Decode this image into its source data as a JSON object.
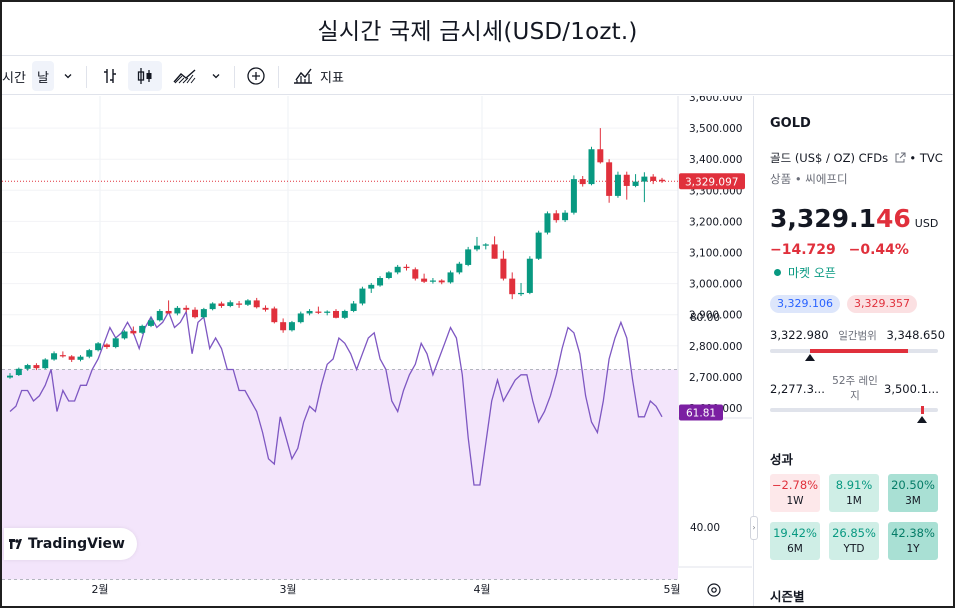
{
  "page": {
    "title": "실시간 국제 금시세(USD/1ozt.)"
  },
  "toolbar": {
    "interval_label_partial": "시간",
    "interval_value": "날",
    "indicators_label": "지표"
  },
  "symbol": {
    "name": "GOLD",
    "description": "골드 (US$ / OZ) CFDs",
    "exchange": "• TVC",
    "category": "상품 • 씨에프디",
    "price_main": "3,329.1",
    "price_tail": "46",
    "currency": "USD",
    "change_abs": "−14.729",
    "change_pct": "−0.44%",
    "market_status": "마켓 오픈",
    "bid": "3,329.106",
    "ask": "3,329.357"
  },
  "day_range": {
    "label": "일간범위",
    "low": "3,322.980",
    "high": "3,348.650",
    "low_value": 3322.98,
    "high_value": 3348.65,
    "current_value": 3329.146
  },
  "week52_range": {
    "label": "52주 레인지",
    "low": "2,277.3...",
    "high": "3,500.1...",
    "low_value": 2277.3,
    "high_value": 3500.1,
    "current_value": 3329.146
  },
  "performance": {
    "title": "성과",
    "items": [
      {
        "period": "1W",
        "value": "−2.78%"
      },
      {
        "period": "1M",
        "value": "8.91%"
      },
      {
        "period": "3M",
        "value": "20.50%"
      },
      {
        "period": "6M",
        "value": "19.42%"
      },
      {
        "period": "YTD",
        "value": "26.85%"
      },
      {
        "period": "1Y",
        "value": "42.38%"
      }
    ]
  },
  "seasonal": {
    "title": "시즌별"
  },
  "branding": {
    "logo_text": "TradingView"
  },
  "colors": {
    "up": "#089981",
    "down": "#e0303c",
    "rsi_line": "#7e57c2",
    "rsi_fill": "#f3e5fb",
    "rsi_label": "#7b1fa2"
  },
  "chart_data": [
    {
      "type": "candlestick",
      "title": "",
      "ylim": [
        2570,
        3600
      ],
      "y_ticks": [
        "2,600.000",
        "2,700.000",
        "2,800.000",
        "2,900.000",
        "3,000.000",
        "3,100.000",
        "3,200.000",
        "3,300.000",
        "3,400.000",
        "3,500.000",
        "3,600.000"
      ],
      "x_tick_labels": [
        "2월",
        "3월",
        "4월",
        "5월"
      ],
      "last_price_label": "3,329.097",
      "last_price": 3329.097,
      "reference_line": 2700,
      "candles": [
        [
          2698,
          2712,
          2694,
          2704
        ],
        [
          2706,
          2730,
          2703,
          2726
        ],
        [
          2726,
          2742,
          2720,
          2738
        ],
        [
          2738,
          2744,
          2722,
          2728
        ],
        [
          2728,
          2760,
          2725,
          2756
        ],
        [
          2756,
          2782,
          2752,
          2776
        ],
        [
          2770,
          2782,
          2762,
          2766
        ],
        [
          2766,
          2770,
          2748,
          2755
        ],
        [
          2755,
          2770,
          2750,
          2765
        ],
        [
          2765,
          2790,
          2760,
          2786
        ],
        [
          2786,
          2812,
          2782,
          2808
        ],
        [
          2804,
          2808,
          2790,
          2796
        ],
        [
          2796,
          2828,
          2792,
          2824
        ],
        [
          2824,
          2850,
          2820,
          2846
        ],
        [
          2848,
          2862,
          2836,
          2840
        ],
        [
          2842,
          2868,
          2838,
          2864
        ],
        [
          2864,
          2890,
          2860,
          2882
        ],
        [
          2882,
          2918,
          2878,
          2912
        ],
        [
          2912,
          2946,
          2906,
          2904
        ],
        [
          2904,
          2928,
          2898,
          2922
        ],
        [
          2922,
          2930,
          2908,
          2916
        ],
        [
          2916,
          2924,
          2888,
          2892
        ],
        [
          2892,
          2922,
          2888,
          2918
        ],
        [
          2918,
          2940,
          2914,
          2936
        ],
        [
          2936,
          2942,
          2922,
          2928
        ],
        [
          2928,
          2946,
          2924,
          2940
        ],
        [
          2936,
          2944,
          2922,
          2932
        ],
        [
          2932,
          2950,
          2928,
          2946
        ],
        [
          2946,
          2954,
          2920,
          2924
        ],
        [
          2922,
          2930,
          2910,
          2916
        ],
        [
          2920,
          2926,
          2872,
          2876
        ],
        [
          2876,
          2888,
          2842,
          2850
        ],
        [
          2850,
          2880,
          2846,
          2876
        ],
        [
          2876,
          2910,
          2872,
          2904
        ],
        [
          2904,
          2918,
          2898,
          2912
        ],
        [
          2910,
          2926,
          2902,
          2906
        ],
        [
          2906,
          2914,
          2898,
          2910
        ],
        [
          2912,
          2918,
          2888,
          2890
        ],
        [
          2890,
          2916,
          2886,
          2912
        ],
        [
          2912,
          2944,
          2908,
          2936
        ],
        [
          2936,
          2990,
          2930,
          2984
        ],
        [
          2984,
          3002,
          2970,
          2996
        ],
        [
          2994,
          3024,
          2990,
          3018
        ],
        [
          3018,
          3040,
          3014,
          3036
        ],
        [
          3036,
          3060,
          3030,
          3054
        ],
        [
          3054,
          3062,
          3042,
          3050
        ],
        [
          3046,
          3052,
          3010,
          3016
        ],
        [
          3016,
          3032,
          3002,
          3006
        ],
        [
          3006,
          3018,
          3000,
          3010
        ],
        [
          3010,
          3014,
          2998,
          3004
        ],
        [
          3004,
          3042,
          3000,
          3036
        ],
        [
          3036,
          3070,
          3030,
          3064
        ],
        [
          3060,
          3118,
          3056,
          3110
        ],
        [
          3110,
          3150,
          3104,
          3122
        ],
        [
          3122,
          3130,
          3110,
          3126
        ],
        [
          3126,
          3152,
          3080,
          3080
        ],
        [
          3080,
          3106,
          3010,
          3016
        ],
        [
          3016,
          3036,
          2950,
          2966
        ],
        [
          2966,
          3002,
          2960,
          2970
        ],
        [
          2970,
          3088,
          2966,
          3080
        ],
        [
          3080,
          3170,
          3076,
          3164
        ],
        [
          3164,
          3232,
          3158,
          3226
        ],
        [
          3226,
          3236,
          3196,
          3204
        ],
        [
          3204,
          3236,
          3198,
          3228
        ],
        [
          3228,
          3348,
          3222,
          3336
        ],
        [
          3336,
          3346,
          3312,
          3320
        ],
        [
          3320,
          3440,
          3316,
          3432
        ],
        [
          3432,
          3500,
          3386,
          3390
        ],
        [
          3390,
          3400,
          3260,
          3282
        ],
        [
          3282,
          3360,
          3276,
          3350
        ],
        [
          3350,
          3360,
          3270,
          3314
        ],
        [
          3314,
          3352,
          3310,
          3328
        ],
        [
          3328,
          3358,
          3262,
          3344
        ],
        [
          3344,
          3352,
          3320,
          3330
        ],
        [
          3334,
          3340,
          3324,
          3329
        ]
      ]
    },
    {
      "type": "line",
      "title": "",
      "ylim": [
        25,
        90
      ],
      "y_ticks": [
        "40.00",
        "60.00",
        "80.00"
      ],
      "band": [
        30,
        70
      ],
      "last_value_label": "61.81",
      "last_value": 61.81,
      "values": [
        62,
        63,
        66,
        66,
        64,
        65,
        67,
        70,
        62,
        66,
        64,
        64,
        67,
        67,
        70,
        72,
        75,
        78,
        76,
        77,
        79,
        77,
        74,
        78,
        80,
        78,
        79,
        81,
        78,
        79,
        81,
        73,
        79,
        80,
        74,
        76,
        74,
        70,
        70,
        66,
        66,
        64,
        62,
        58,
        53,
        52,
        61,
        57,
        53,
        55,
        60,
        63,
        62,
        67,
        71,
        72,
        76,
        75,
        73,
        70,
        73,
        76,
        77,
        72,
        70,
        64,
        62,
        66,
        69,
        71,
        75,
        73,
        69,
        72,
        75,
        78,
        76,
        69,
        57,
        48,
        48,
        56,
        64,
        68,
        64,
        66,
        68,
        69,
        69,
        64,
        60,
        62,
        65,
        69,
        74,
        78,
        77,
        73,
        65,
        60,
        58,
        64,
        72,
        76,
        79,
        76,
        68,
        61,
        61,
        64,
        63,
        61
      ]
    }
  ]
}
